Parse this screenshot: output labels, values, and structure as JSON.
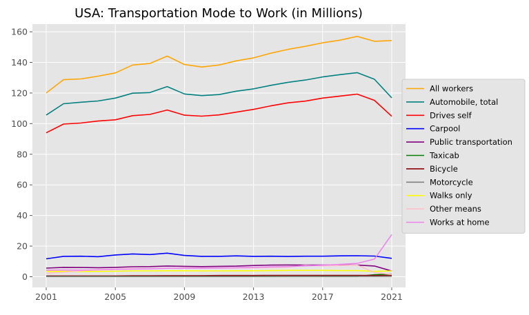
{
  "chart_data": {
    "type": "line",
    "title": "USA: Transportation Mode to Work (in Millions)",
    "xlabel": "",
    "ylabel": "",
    "xlim": [
      2000.2,
      2021.8
    ],
    "ylim": [
      -7,
      165
    ],
    "x": [
      2001,
      2002,
      2003,
      2004,
      2005,
      2006,
      2007,
      2008,
      2009,
      2010,
      2011,
      2012,
      2013,
      2014,
      2015,
      2016,
      2017,
      2018,
      2019,
      2020,
      2021
    ],
    "x_ticks": [
      2001,
      2005,
      2009,
      2013,
      2017,
      2021
    ],
    "x_tick_labels": [
      "2001",
      "2005",
      "2009",
      "2013",
      "2017",
      "2021"
    ],
    "y_ticks": [
      0,
      20,
      40,
      60,
      80,
      100,
      120,
      140,
      160
    ],
    "y_tick_labels": [
      "0",
      "20",
      "40",
      "60",
      "80",
      "100",
      "120",
      "140",
      "160"
    ],
    "grid": true,
    "background": "#e5e5e5",
    "legend_position": "center right, outside plot",
    "series": [
      {
        "name": "All workers",
        "color": "#ffa500",
        "values": [
          120,
          128.7,
          129.2,
          131,
          133.1,
          138.3,
          139.3,
          144.1,
          138.6,
          137,
          138.3,
          141,
          143,
          146,
          148.5,
          150.5,
          152.8,
          154.5,
          157,
          153.8,
          154.3
        ]
      },
      {
        "name": "Automobile, total",
        "color": "#008080",
        "values": [
          105.6,
          113,
          114,
          114.8,
          116.7,
          119.9,
          120.3,
          124.2,
          119.4,
          118.3,
          119,
          121.2,
          122.7,
          125,
          127,
          128.5,
          130.5,
          132,
          133.3,
          129,
          116.8
        ]
      },
      {
        "name": "Drives self",
        "color": "#ff0000",
        "values": [
          94,
          99.7,
          100.4,
          101.7,
          102.5,
          105.2,
          106,
          108.9,
          105.5,
          104.9,
          105.7,
          107.5,
          109.3,
          111.6,
          113.6,
          114.7,
          116.7,
          118,
          119.3,
          115.2,
          104.8
        ]
      },
      {
        "name": "Carpool",
        "color": "#0000ff",
        "values": [
          11.7,
          13.3,
          13.4,
          13.1,
          14.2,
          14.9,
          14.5,
          15.4,
          13.9,
          13.3,
          13.3,
          13.6,
          13.3,
          13.4,
          13.2,
          13.4,
          13.4,
          13.6,
          13.7,
          13.5,
          12
        ]
      },
      {
        "name": "Public transportation",
        "color": "#800080",
        "values": [
          5.6,
          6.1,
          6,
          5.9,
          6.1,
          6.5,
          6.6,
          7,
          6.8,
          6.6,
          6.8,
          6.9,
          7.3,
          7.6,
          7.7,
          7.6,
          7.6,
          7.6,
          7.6,
          7,
          3.7
        ]
      },
      {
        "name": "Taxicab",
        "color": "#008000",
        "values": [
          0.15,
          0.15,
          0.15,
          0.15,
          0.15,
          0.15,
          0.15,
          0.15,
          0.15,
          0.15,
          0.15,
          0.15,
          0.15,
          0.18,
          0.2,
          0.22,
          0.25,
          0.25,
          0.25,
          1.3,
          1.8
        ]
      },
      {
        "name": "Bicycle",
        "color": "#8b0000",
        "values": [
          0.5,
          0.5,
          0.5,
          0.5,
          0.5,
          0.6,
          0.6,
          0.7,
          0.7,
          0.7,
          0.8,
          0.8,
          0.8,
          0.9,
          0.9,
          0.9,
          0.9,
          0.9,
          0.9,
          0.8,
          0.9
        ]
      },
      {
        "name": "Motorcycle",
        "color": "#808080",
        "values": [
          0.2,
          0.2,
          0.2,
          0.2,
          0.2,
          0.2,
          0.2,
          0.2,
          0.2,
          0.2,
          0.2,
          0.2,
          0.2,
          0.2,
          0.2,
          0.2,
          0.2,
          0.2,
          0.2,
          0.2,
          0.2
        ]
      },
      {
        "name": "Walks only",
        "color": "#ffff00",
        "values": [
          3.5,
          3.5,
          3.4,
          3.5,
          3.6,
          3.8,
          3.8,
          3.9,
          3.9,
          3.8,
          3.8,
          3.9,
          3.9,
          4,
          4.1,
          4.1,
          4.1,
          4,
          4,
          3.5,
          3.8
        ]
      },
      {
        "name": "Other means",
        "color": "#ffc0cb",
        "values": [
          2.3,
          2.9,
          3.8,
          4.6,
          4.9,
          5.3,
          5.1,
          5.5,
          5.7,
          5.6,
          5.6,
          5.7,
          5.8,
          6,
          6.3,
          7.4,
          7.1,
          7.3,
          7.6,
          2.8,
          1.5
        ]
      },
      {
        "name": "Works at home",
        "color": "#ee82ee",
        "values": [
          4.2,
          4.4,
          4.3,
          4.5,
          4.8,
          5,
          5.2,
          5.5,
          5.5,
          5.5,
          5.7,
          5.9,
          6.1,
          6.4,
          6.6,
          7.1,
          7.5,
          8.1,
          8.7,
          11.5,
          27.6
        ]
      }
    ]
  }
}
